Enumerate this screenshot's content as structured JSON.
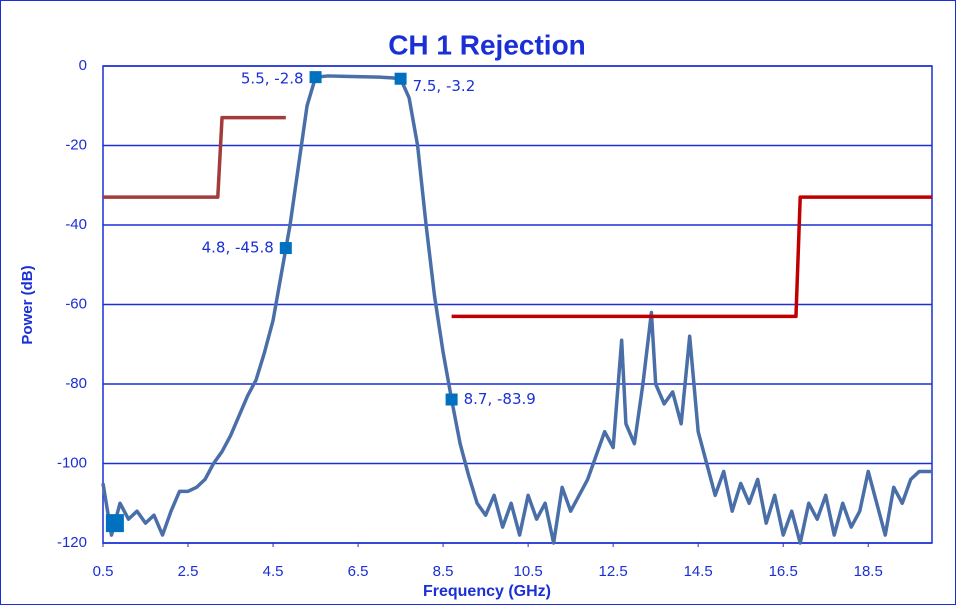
{
  "chart_data": {
    "type": "line",
    "title": "CH 1 Rejection",
    "x_label": "Frequency (GHz)",
    "y_label": "Power (dB)",
    "xlim": [
      0.5,
      20
    ],
    "ylim": [
      -120,
      0
    ],
    "xticks": [
      0.5,
      2.5,
      4.5,
      6.5,
      8.5,
      10.5,
      12.5,
      14.5,
      16.5,
      18.5
    ],
    "yticks": [
      0,
      -20,
      -40,
      -60,
      -80,
      -100,
      -120
    ],
    "grid": true,
    "series": [
      {
        "color": "#4a6fa8",
        "x": [
          0.5,
          0.7,
          0.9,
          1.1,
          1.3,
          1.5,
          1.7,
          1.9,
          2.1,
          2.3,
          2.5,
          2.7,
          2.9,
          3.1,
          3.3,
          3.5,
          3.7,
          3.9,
          4.1,
          4.3,
          4.5,
          4.7,
          4.9,
          5.1,
          5.3,
          5.5,
          5.8,
          6.2,
          6.6,
          7.0,
          7.3,
          7.5,
          7.7,
          7.9,
          8.1,
          8.3,
          8.5,
          8.7,
          8.9,
          9.1,
          9.3,
          9.5,
          9.7,
          9.9,
          10.1,
          10.3,
          10.5,
          10.7,
          10.9,
          11.1,
          11.3,
          11.5,
          11.7,
          11.9,
          12.1,
          12.3,
          12.5,
          12.7,
          12.8,
          13.0,
          13.2,
          13.4,
          13.5,
          13.7,
          13.9,
          14.1,
          14.3,
          14.5,
          14.7,
          14.9,
          15.1,
          15.3,
          15.5,
          15.7,
          15.9,
          16.1,
          16.3,
          16.5,
          16.7,
          16.9,
          17.1,
          17.3,
          17.5,
          17.7,
          17.9,
          18.1,
          18.3,
          18.5,
          18.7,
          18.9,
          19.1,
          19.3,
          19.5,
          19.7,
          20
        ],
        "values": [
          -105,
          -118,
          -110,
          -114,
          -112,
          -115,
          -113,
          -118,
          -112,
          -107,
          -107,
          -106,
          -104,
          -100,
          -97,
          -93,
          -88,
          -83,
          -79,
          -72,
          -64,
          -52,
          -40,
          -25,
          -10,
          -2.8,
          -2.5,
          -2.6,
          -2.7,
          -2.8,
          -3.0,
          -3.2,
          -8,
          -20,
          -40,
          -58,
          -72,
          -83.9,
          -95,
          -103,
          -110,
          -113,
          -108,
          -116,
          -110,
          -118,
          -108,
          -114,
          -110,
          -120,
          -106,
          -112,
          -108,
          -104,
          -98,
          -92,
          -96,
          -69,
          -90,
          -95,
          -80,
          -62,
          -80,
          -85,
          -82,
          -90,
          -68,
          -92,
          -100,
          -108,
          -102,
          -112,
          -105,
          -110,
          -104,
          -115,
          -108,
          -118,
          -112,
          -120,
          -110,
          -114,
          -108,
          -118,
          -110,
          -116,
          -112,
          -102,
          -110,
          -118,
          -106,
          -110,
          -104,
          -102,
          -102
        ]
      },
      {
        "color": "#a33b3b",
        "x": [
          0.5,
          3.2,
          3.3,
          4.8
        ],
        "values": [
          -33,
          -33,
          -13,
          -13
        ]
      },
      {
        "color": "#c00000",
        "x": [
          8.7,
          16.8,
          16.9,
          20
        ],
        "values": [
          -63,
          -63,
          -33,
          -33
        ]
      }
    ],
    "markers": [
      {
        "color": "#0070c0",
        "x": [
          5.5,
          7.5,
          4.8,
          8.7
        ],
        "values": [
          -2.8,
          -3.2,
          -45.8,
          -83.9
        ],
        "value_labels": [
          "5.5, -2.8",
          "7.5, -3.2",
          "4.8, -45.8",
          "8.7, -83.9"
        ]
      },
      {
        "color": "#0070c0",
        "x": [
          0.78
        ],
        "values": [
          -115
        ]
      }
    ]
  }
}
